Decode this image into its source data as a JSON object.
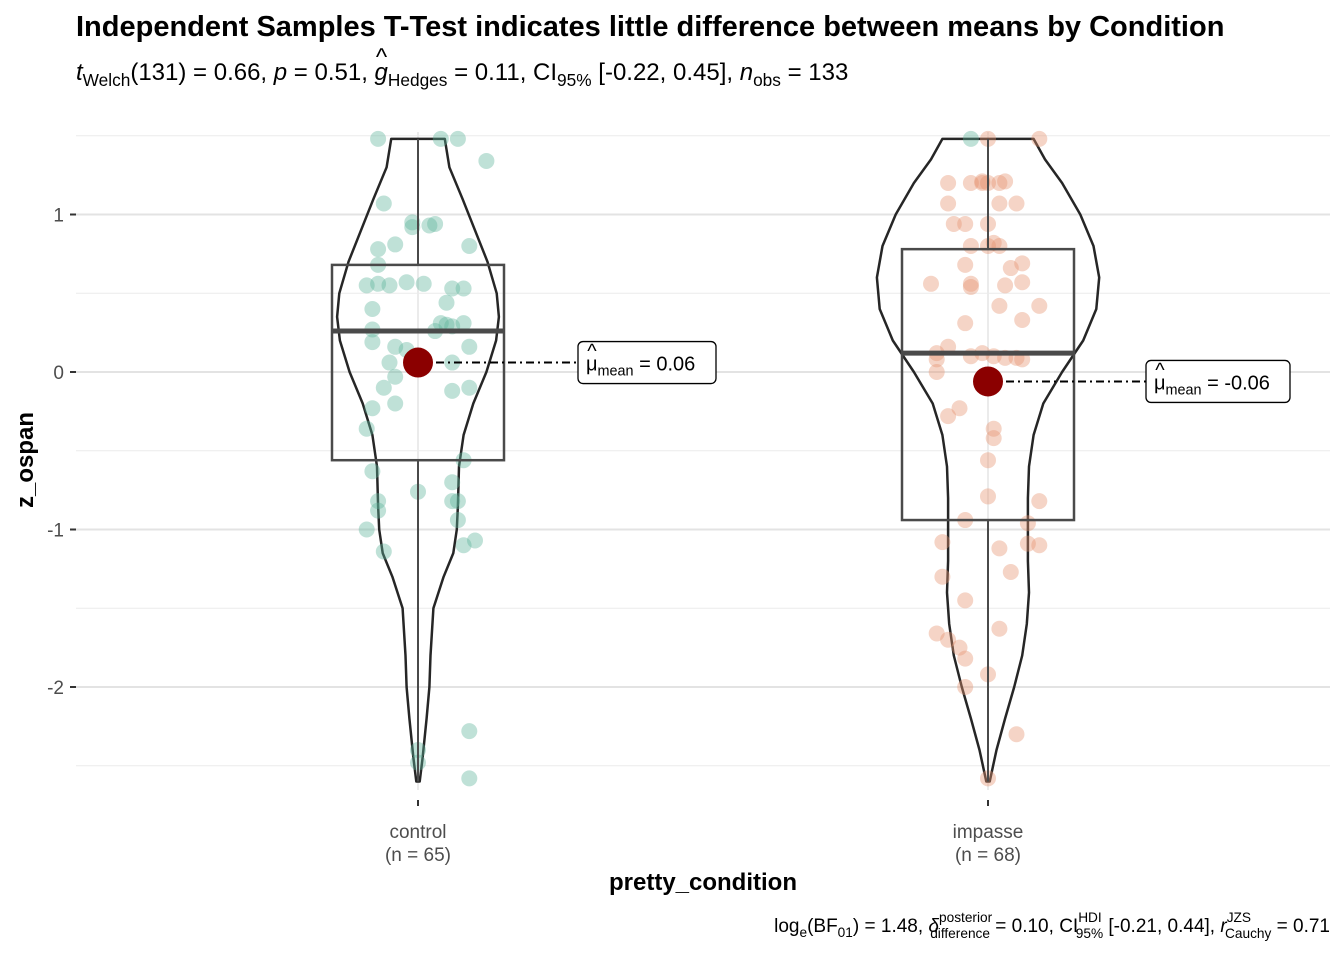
{
  "title": "Independent Samples T-Test indicates little difference between means by Condition",
  "subtitle": {
    "t_sym": "t",
    "t_sub": "Welch",
    "df": "(131) = 0.66, ",
    "p_sym": "p",
    "p_val": " = 0.51, ",
    "g_sym": "g",
    "g_hat": "^",
    "g_sub": "Hedges",
    "g_val": " = 0.11, ",
    "ci_sym": "CI",
    "ci_sub": "95%",
    "ci_val": " [-0.22, 0.45], ",
    "n_sym": "n",
    "n_sub": "obs",
    "n_val": " = 133"
  },
  "caption": {
    "log": "log",
    "log_sub": "e",
    "bf": "(BF",
    "bf_sub": "01",
    "bf_val": ") = 1.48, ",
    "delta": "δ",
    "delta_hat": "^",
    "delta_sup": "posterior",
    "delta_sub": "difference",
    "delta_val": " = 0.10, ",
    "ci": "CI",
    "ci_sup": "HDI",
    "ci_sub": "95%",
    "ci_val": " [-0.21, 0.44], ",
    "r": "r",
    "r_sup": "JZS",
    "r_sub": "Cauchy",
    "r_val": " = 0.71"
  },
  "chart_data": {
    "type": "violin-box-scatter",
    "xlabel": "pretty_condition",
    "ylabel": "z_ospan",
    "ylim": [
      -2.72,
      1.6
    ],
    "yticks": [
      -2,
      -1,
      0,
      1
    ],
    "ytick_labels": [
      "-2",
      "-1",
      "0",
      "1"
    ],
    "grid": true,
    "mean_color": "#8b0000",
    "groups": [
      {
        "name": "control",
        "n_label": "(n = 65)",
        "color": "#5fb49c",
        "min": -2.6,
        "max": 1.48,
        "q1": -0.56,
        "median": 0.26,
        "q3": 0.68,
        "mean": 0.06,
        "mean_glyph": "μ",
        "mean_hat": "^",
        "mean_sub": "mean",
        "mean_label": " = 0.06",
        "violin": [
          [
            -2.6,
            0.003
          ],
          [
            -2.45,
            0.008
          ],
          [
            -2.2,
            0.015
          ],
          [
            -2.0,
            0.02
          ],
          [
            -1.8,
            0.022
          ],
          [
            -1.5,
            0.027
          ],
          [
            -1.3,
            0.045
          ],
          [
            -1.15,
            0.062
          ],
          [
            -1.0,
            0.068
          ],
          [
            -0.85,
            0.07
          ],
          [
            -0.6,
            0.072
          ],
          [
            -0.4,
            0.08
          ],
          [
            -0.2,
            0.097
          ],
          [
            0.0,
            0.12
          ],
          [
            0.2,
            0.137
          ],
          [
            0.35,
            0.142
          ],
          [
            0.5,
            0.138
          ],
          [
            0.7,
            0.122
          ],
          [
            0.9,
            0.1
          ],
          [
            1.1,
            0.078
          ],
          [
            1.3,
            0.055
          ],
          [
            1.48,
            0.047
          ]
        ],
        "points": [
          [
            0.97,
            1.48
          ],
          [
            -0.07,
            1.48
          ],
          [
            0.04,
            1.48
          ],
          [
            0.07,
            1.48
          ],
          [
            0.12,
            1.34
          ],
          [
            -0.06,
            1.07
          ],
          [
            -0.01,
            0.95
          ],
          [
            -0.01,
            0.92
          ],
          [
            0.03,
            0.94
          ],
          [
            0.02,
            0.93
          ],
          [
            0.09,
            0.8
          ],
          [
            -0.04,
            0.81
          ],
          [
            -0.07,
            0.78
          ],
          [
            -0.07,
            0.68
          ],
          [
            -0.07,
            0.56
          ],
          [
            -0.05,
            0.55
          ],
          [
            -0.02,
            0.57
          ],
          [
            0.01,
            0.56
          ],
          [
            0.05,
            0.44
          ],
          [
            0.08,
            0.53
          ],
          [
            0.06,
            0.53
          ],
          [
            -0.08,
            0.4
          ],
          [
            -0.09,
            0.55
          ],
          [
            0.06,
            0.29
          ],
          [
            0.04,
            0.31
          ],
          [
            0.08,
            0.31
          ],
          [
            0.05,
            0.3
          ],
          [
            0.03,
            0.26
          ],
          [
            -0.08,
            0.27
          ],
          [
            -0.08,
            0.19
          ],
          [
            -0.04,
            0.16
          ],
          [
            0.09,
            0.16
          ],
          [
            -0.02,
            0.14
          ],
          [
            -0.05,
            0.06
          ],
          [
            -0.04,
            -0.03
          ],
          [
            0.06,
            0.06
          ],
          [
            -0.06,
            -0.1
          ],
          [
            -0.04,
            -0.2
          ],
          [
            0.06,
            -0.12
          ],
          [
            0.09,
            -0.1
          ],
          [
            -0.08,
            -0.23
          ],
          [
            -0.09,
            -0.36
          ],
          [
            0.08,
            -0.56
          ],
          [
            -0.08,
            -0.63
          ],
          [
            0.06,
            -0.7
          ],
          [
            0.0,
            -0.76
          ],
          [
            -0.07,
            -0.82
          ],
          [
            0.06,
            -0.82
          ],
          [
            0.07,
            -0.82
          ],
          [
            -0.07,
            -0.88
          ],
          [
            0.07,
            -0.94
          ],
          [
            -0.09,
            -1.0
          ],
          [
            0.1,
            -1.07
          ],
          [
            0.08,
            -1.1
          ],
          [
            -0.06,
            -1.14
          ],
          [
            0.09,
            -2.28
          ],
          [
            0.0,
            -2.4
          ],
          [
            0.0,
            -2.48
          ],
          [
            0.09,
            -2.58
          ]
        ]
      },
      {
        "name": "impasse",
        "n_label": "(n = 68)",
        "color": "#e59370",
        "min": -2.6,
        "max": 1.48,
        "q1": -0.94,
        "median": 0.12,
        "q3": 0.78,
        "mean": -0.06,
        "mean_glyph": "μ",
        "mean_hat": "^",
        "mean_sub": "mean",
        "mean_label": " = -0.06",
        "violin": [
          [
            -2.6,
            0.003
          ],
          [
            -2.4,
            0.015
          ],
          [
            -2.2,
            0.03
          ],
          [
            -2.0,
            0.046
          ],
          [
            -1.8,
            0.06
          ],
          [
            -1.6,
            0.068
          ],
          [
            -1.4,
            0.072
          ],
          [
            -1.2,
            0.07
          ],
          [
            -1.0,
            0.07
          ],
          [
            -0.8,
            0.07
          ],
          [
            -0.6,
            0.072
          ],
          [
            -0.4,
            0.08
          ],
          [
            -0.2,
            0.097
          ],
          [
            0.0,
            0.13
          ],
          [
            0.2,
            0.167
          ],
          [
            0.4,
            0.19
          ],
          [
            0.6,
            0.195
          ],
          [
            0.8,
            0.185
          ],
          [
            1.0,
            0.162
          ],
          [
            1.2,
            0.13
          ],
          [
            1.35,
            0.1
          ],
          [
            1.48,
            0.08
          ]
        ],
        "points": [
          [
            0.09,
            1.48
          ],
          [
            0.0,
            1.48
          ],
          [
            -0.07,
            1.2
          ],
          [
            -0.03,
            1.2
          ],
          [
            -0.01,
            1.21
          ],
          [
            0.02,
            1.2
          ],
          [
            0.03,
            1.21
          ],
          [
            -0.01,
            1.2
          ],
          [
            -0.07,
            1.07
          ],
          [
            0.05,
            1.07
          ],
          [
            0.02,
            1.07
          ],
          [
            0.0,
            1.2
          ],
          [
            -0.06,
            0.94
          ],
          [
            -0.04,
            0.94
          ],
          [
            0.0,
            0.94
          ],
          [
            0.0,
            0.8
          ],
          [
            0.02,
            0.8
          ],
          [
            0.01,
            0.82
          ],
          [
            -0.03,
            0.8
          ],
          [
            -0.04,
            0.68
          ],
          [
            0.04,
            0.66
          ],
          [
            0.06,
            0.69
          ],
          [
            -0.1,
            0.56
          ],
          [
            -0.03,
            0.54
          ],
          [
            -0.03,
            0.56
          ],
          [
            0.03,
            0.55
          ],
          [
            0.06,
            0.57
          ],
          [
            0.02,
            0.42
          ],
          [
            0.06,
            0.33
          ],
          [
            0.09,
            0.42
          ],
          [
            -0.04,
            0.31
          ],
          [
            -0.07,
            0.16
          ],
          [
            -0.09,
            0.12
          ],
          [
            -0.09,
            0.08
          ],
          [
            -0.01,
            0.12
          ],
          [
            -0.03,
            0.1
          ],
          [
            0.01,
            0.1
          ],
          [
            0.03,
            0.09
          ],
          [
            0.05,
            0.09
          ],
          [
            0.06,
            0.08
          ],
          [
            -0.09,
            0.0
          ],
          [
            -0.07,
            -0.28
          ],
          [
            -0.05,
            -0.23
          ],
          [
            0.01,
            -0.36
          ],
          [
            0.01,
            -0.42
          ],
          [
            0.0,
            -0.56
          ],
          [
            0.0,
            -0.79
          ],
          [
            -0.04,
            -0.94
          ],
          [
            0.07,
            -0.96
          ],
          [
            0.09,
            -0.82
          ],
          [
            -0.08,
            -1.08
          ],
          [
            0.02,
            -1.12
          ],
          [
            0.07,
            -1.09
          ],
          [
            0.09,
            -1.1
          ],
          [
            -0.08,
            -1.3
          ],
          [
            0.04,
            -1.27
          ],
          [
            -0.04,
            -1.45
          ],
          [
            -0.09,
            -1.66
          ],
          [
            -0.07,
            -1.7
          ],
          [
            -0.05,
            -1.75
          ],
          [
            -0.04,
            -1.82
          ],
          [
            0.02,
            -1.63
          ],
          [
            -0.04,
            -2.0
          ],
          [
            0.0,
            -1.92
          ],
          [
            0.05,
            -2.3
          ],
          [
            0.0,
            -2.58
          ]
        ]
      }
    ]
  }
}
